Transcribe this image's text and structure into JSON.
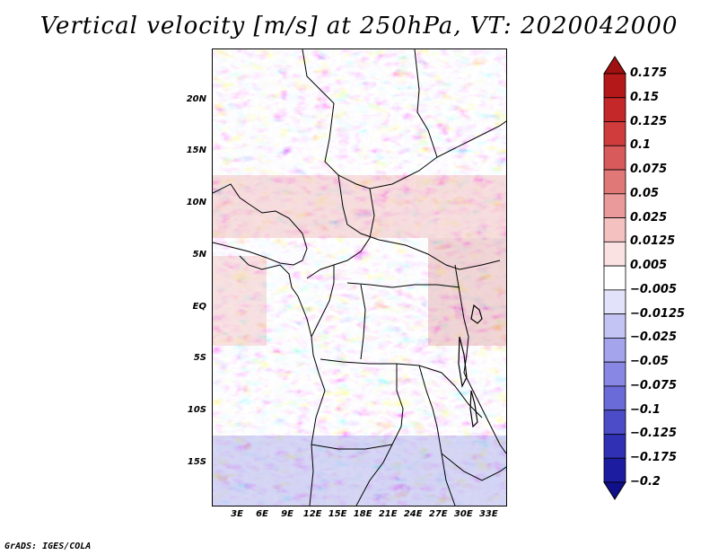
{
  "title": "Vertical velocity [m/s] at 250hPa, VT: 2020042000",
  "footer": "GrADS: IGES/COLA",
  "map": {
    "projection": "latlon",
    "lon_range": [
      0,
      35
    ],
    "lat_range": [
      -19,
      25
    ],
    "field": "vertical velocity",
    "level": "250hPa",
    "valid_time": "2020042000",
    "lat_labels": [
      {
        "text": "20N",
        "lat": 20
      },
      {
        "text": "15N",
        "lat": 15
      },
      {
        "text": "10N",
        "lat": 10
      },
      {
        "text": "5N",
        "lat": 5
      },
      {
        "text": "EQ",
        "lat": 0
      },
      {
        "text": "5S",
        "lat": -5
      },
      {
        "text": "10S",
        "lat": -10
      },
      {
        "text": "15S",
        "lat": -15
      }
    ],
    "lon_labels": [
      {
        "text": "3E",
        "lon": 3
      },
      {
        "text": "6E",
        "lon": 6
      },
      {
        "text": "9E",
        "lon": 9
      },
      {
        "text": "12E",
        "lon": 12
      },
      {
        "text": "15E",
        "lon": 15
      },
      {
        "text": "18E",
        "lon": 18
      },
      {
        "text": "21E",
        "lon": 21
      },
      {
        "text": "24E",
        "lon": 24
      },
      {
        "text": "27E",
        "lon": 27
      },
      {
        "text": "30E",
        "lon": 30
      },
      {
        "text": "33E",
        "lon": 33
      }
    ]
  },
  "colorbar": {
    "labels": [
      "0.175",
      "0.15",
      "0.125",
      "0.1",
      "0.075",
      "0.05",
      "0.025",
      "0.0125",
      "0.005",
      "−0.005",
      "−0.0125",
      "−0.025",
      "−0.05",
      "−0.075",
      "−0.1",
      "−0.125",
      "−0.175",
      "−0.2"
    ],
    "colors": [
      "#a01010",
      "#b41818",
      "#c42828",
      "#d03c3c",
      "#d85a5a",
      "#e07878",
      "#ea9a9a",
      "#f4c0c0",
      "#fbe2e2",
      "#ffffff",
      "#e2e2fb",
      "#c4c4f4",
      "#a4a4ec",
      "#8888e4",
      "#6a6ad8",
      "#4c4cc8",
      "#3030b4",
      "#1c1ca0",
      "#10108a"
    ]
  }
}
